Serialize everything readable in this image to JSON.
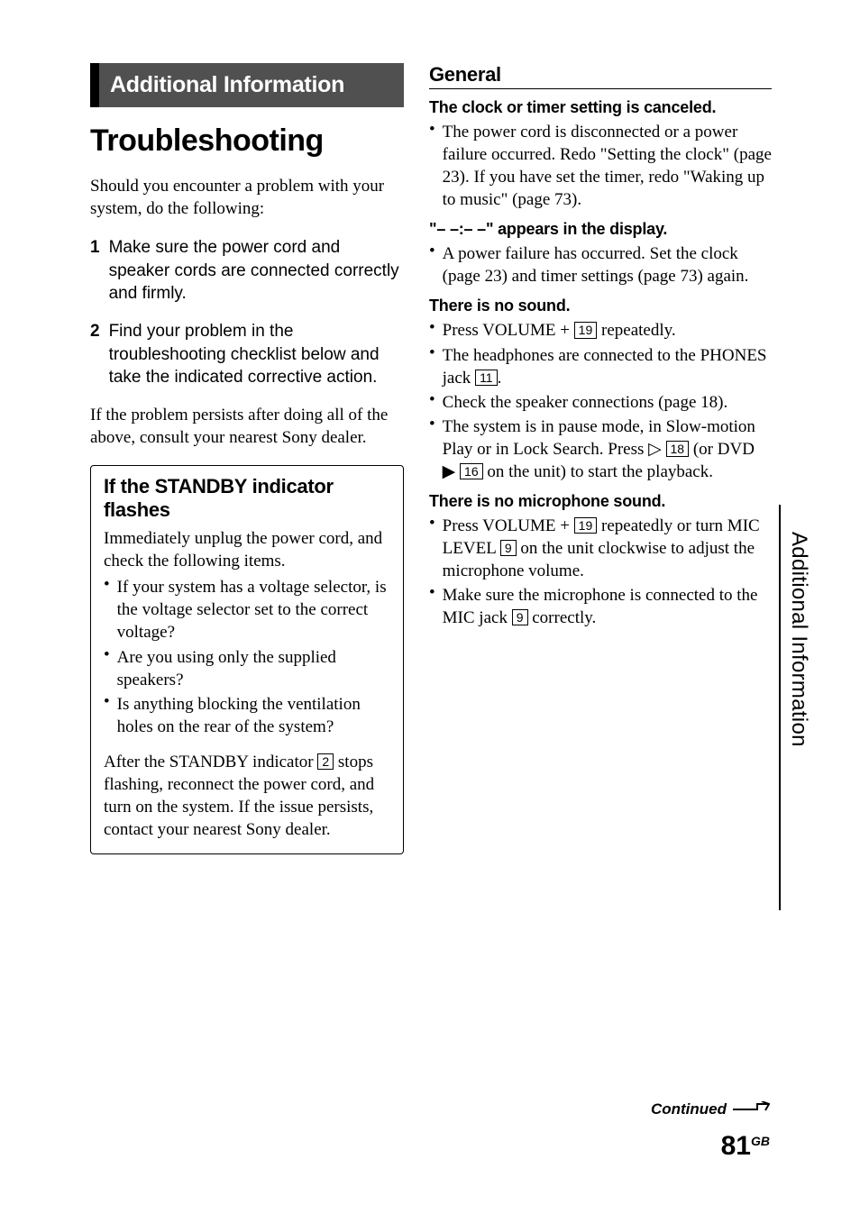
{
  "banner": "Additional Information",
  "title": "Troubleshooting",
  "intro": "Should you encounter a problem with your system, do the following:",
  "steps": [
    {
      "n": "1",
      "t": "Make sure the power cord and speaker cords are connected correctly and firmly."
    },
    {
      "n": "2",
      "t": "Find your problem in the troubleshooting checklist below and take the indicated corrective action."
    }
  ],
  "after_steps": "If the problem persists after doing all of the above, consult your nearest Sony dealer.",
  "standby": {
    "title": "If the STANDBY indicator flashes",
    "lead": "Immediately unplug the power cord, and check the following items.",
    "bullets": [
      "If your system has a voltage selector, is the voltage selector set to the correct voltage?",
      "Are you using only the supplied speakers?",
      "Is anything blocking the ventilation holes on the rear of the system?"
    ],
    "tail_pre": "After the STANDBY indicator ",
    "tail_ref": "2",
    "tail_post": " stops flashing, reconnect the power cord, and turn on the system. If the issue persists, contact your nearest Sony dealer."
  },
  "general": {
    "heading": "General",
    "items": [
      {
        "h": "The clock or timer setting is canceled.",
        "bullets": [
          {
            "text": "The power cord is disconnected or a power failure occurred. Redo \"Setting the clock\" (page 23). If you have set the timer, redo \"Waking up to music\" (page 73)."
          }
        ]
      },
      {
        "h": "\"– –:– –\" appears in the display.",
        "bullets": [
          {
            "text": "A power failure has occurred. Set the clock (page 23) and timer settings (page 73) again."
          }
        ]
      },
      {
        "h": "There is no sound.",
        "bullets": [
          {
            "parts": [
              {
                "t": "Press VOLUME + "
              },
              {
                "ref": "19"
              },
              {
                "t": " repeatedly."
              }
            ]
          },
          {
            "parts": [
              {
                "t": "The headphones are connected to the PHONES jack "
              },
              {
                "ref": "11"
              },
              {
                "t": "."
              }
            ]
          },
          {
            "text": "Check the speaker connections (page 18)."
          },
          {
            "parts": [
              {
                "t": "The system is in pause mode, in Slow-motion Play or in Lock Search. Press "
              },
              {
                "icon": "play-outline"
              },
              {
                "t": " "
              },
              {
                "ref": "18"
              },
              {
                "t": " (or DVD "
              },
              {
                "icon": "play-solid"
              },
              {
                "t": " "
              },
              {
                "ref": "16"
              },
              {
                "t": " on the unit) to start the playback."
              }
            ]
          }
        ]
      },
      {
        "h": "There is no microphone sound.",
        "bullets": [
          {
            "parts": [
              {
                "t": "Press VOLUME + "
              },
              {
                "ref": "19"
              },
              {
                "t": " repeatedly or turn MIC LEVEL "
              },
              {
                "ref": "9"
              },
              {
                "t": " on the unit clockwise to adjust the microphone volume."
              }
            ]
          },
          {
            "parts": [
              {
                "t": "Make sure the microphone is connected to the MIC jack "
              },
              {
                "ref": "9"
              },
              {
                "t": " correctly."
              }
            ]
          }
        ]
      }
    ]
  },
  "side_tab": "Additional Information",
  "continued": "Continued",
  "page_num": "81",
  "page_suffix": "GB"
}
